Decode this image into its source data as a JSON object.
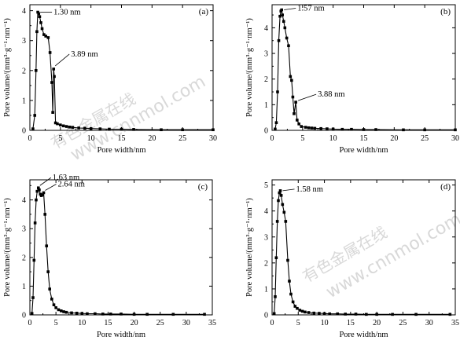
{
  "watermark": {
    "line1": "有色金属在线",
    "line2": "www.cnnmol.com"
  },
  "chart_data": [
    {
      "type": "line",
      "panel_label": "(a)",
      "xlabel": "Pore width/nm",
      "ylabel": "Pore volume/(mm³·g⁻¹·nm⁻¹)",
      "xlim": [
        0,
        30
      ],
      "ylim": [
        0,
        4.2
      ],
      "xticks": [
        0,
        5,
        10,
        15,
        20,
        25,
        30
      ],
      "yticks": [
        0,
        1,
        2,
        3,
        4
      ],
      "x": [
        0.5,
        0.8,
        1.0,
        1.15,
        1.3,
        1.45,
        1.6,
        1.8,
        2.0,
        2.3,
        2.6,
        3.0,
        3.3,
        3.6,
        3.75,
        3.89,
        4.0,
        4.2,
        4.5,
        5.0,
        5.5,
        6.0,
        6.5,
        7.0,
        8.0,
        9.0,
        10.0,
        11.5,
        13.0,
        15.0,
        17.0,
        21.5,
        25.0,
        30.0
      ],
      "y": [
        0.05,
        0.5,
        2.0,
        3.3,
        3.95,
        3.9,
        3.8,
        3.6,
        3.4,
        3.2,
        3.15,
        3.1,
        2.6,
        1.6,
        0.6,
        2.05,
        1.8,
        0.25,
        0.22,
        0.18,
        0.15,
        0.13,
        0.11,
        0.1,
        0.08,
        0.07,
        0.06,
        0.05,
        0.04,
        0.04,
        0.03,
        0.02,
        0.02,
        0.02
      ],
      "annotations": [
        {
          "text": "1.30 nm",
          "x": 1.3,
          "y": 3.95
        },
        {
          "text": "3.89 nm",
          "x": 3.89,
          "y": 2.05
        }
      ]
    },
    {
      "type": "line",
      "panel_label": "(b)",
      "xlabel": "Pore width/nm",
      "ylabel": "Pore volume/(mm³·g⁻¹·nm⁻¹)",
      "xlim": [
        0,
        30
      ],
      "ylim": [
        0,
        4.9
      ],
      "xticks": [
        0,
        5,
        10,
        15,
        20,
        25,
        30
      ],
      "yticks": [
        0,
        1,
        2,
        3,
        4
      ],
      "x": [
        0.5,
        0.7,
        0.9,
        1.1,
        1.3,
        1.45,
        1.57,
        1.7,
        1.9,
        2.1,
        2.4,
        2.7,
        3.0,
        3.2,
        3.4,
        3.6,
        3.88,
        4.1,
        4.4,
        4.8,
        5.5,
        6.0,
        6.5,
        7.0,
        8.0,
        9.0,
        10.0,
        11.5,
        13.0,
        15.0,
        17.0,
        21.5,
        25.0,
        30.0
      ],
      "y": [
        0.05,
        0.3,
        1.5,
        3.5,
        4.45,
        4.65,
        4.7,
        4.5,
        4.25,
        4.0,
        3.6,
        3.3,
        2.1,
        1.95,
        1.3,
        0.65,
        1.1,
        0.4,
        0.25,
        0.15,
        0.12,
        0.1,
        0.09,
        0.08,
        0.07,
        0.06,
        0.05,
        0.04,
        0.04,
        0.03,
        0.03,
        0.02,
        0.02,
        0.02
      ],
      "annotations": [
        {
          "text": "1.57 nm",
          "x": 1.57,
          "y": 4.7
        },
        {
          "text": "3.88 nm",
          "x": 3.88,
          "y": 1.1
        }
      ]
    },
    {
      "type": "line",
      "panel_label": "(c)",
      "xlabel": "Pore width/nm",
      "ylabel": "Pore volume/(mm³·g⁻¹·nm⁻¹)",
      "xlim": [
        0,
        35
      ],
      "ylim": [
        0,
        4.7
      ],
      "xticks": [
        0,
        5,
        10,
        15,
        20,
        25,
        30,
        35
      ],
      "yticks": [
        0,
        1,
        2,
        3,
        4
      ],
      "x": [
        0.4,
        0.6,
        0.8,
        1.0,
        1.2,
        1.4,
        1.63,
        1.8,
        2.0,
        2.2,
        2.4,
        2.64,
        2.9,
        3.2,
        3.5,
        3.8,
        4.2,
        4.6,
        5.0,
        5.5,
        6.0,
        6.5,
        7.0,
        8.0,
        9.0,
        10.0,
        11.0,
        12.5,
        14.0,
        15.5,
        17.5,
        20.0,
        22.5,
        27.5,
        33.5
      ],
      "y": [
        0.05,
        0.6,
        1.9,
        3.2,
        4.0,
        4.3,
        4.42,
        4.35,
        4.2,
        4.15,
        4.18,
        4.25,
        3.5,
        2.4,
        1.5,
        0.9,
        0.55,
        0.35,
        0.25,
        0.18,
        0.14,
        0.11,
        0.09,
        0.07,
        0.06,
        0.05,
        0.04,
        0.04,
        0.03,
        0.03,
        0.03,
        0.02,
        0.02,
        0.02,
        0.02
      ],
      "annotations": [
        {
          "text": "1.63 nm",
          "x": 1.63,
          "y": 4.42
        },
        {
          "text": "2.64 nm",
          "x": 2.64,
          "y": 4.25
        }
      ]
    },
    {
      "type": "line",
      "panel_label": "(d)",
      "xlabel": "Pore width/nm",
      "ylabel": "Pore volume/(mm³·g⁻¹·nm⁻¹)",
      "xlim": [
        0,
        35
      ],
      "ylim": [
        0,
        5.2
      ],
      "xticks": [
        0,
        5,
        10,
        15,
        20,
        25,
        30,
        35
      ],
      "yticks": [
        0,
        1,
        2,
        3,
        4,
        5
      ],
      "x": [
        0.4,
        0.6,
        0.8,
        1.0,
        1.2,
        1.4,
        1.58,
        1.75,
        2.0,
        2.3,
        2.6,
        3.0,
        3.3,
        3.6,
        4.0,
        4.4,
        4.8,
        5.3,
        5.8,
        6.3,
        7.0,
        8.0,
        9.0,
        10.0,
        11.0,
        12.5,
        14.0,
        16.0,
        18.0,
        20.0,
        23.0,
        27.5,
        34.0
      ],
      "y": [
        0.05,
        0.7,
        2.2,
        3.6,
        4.4,
        4.7,
        4.78,
        4.6,
        4.25,
        3.95,
        3.6,
        2.1,
        1.3,
        0.8,
        0.5,
        0.33,
        0.25,
        0.18,
        0.14,
        0.11,
        0.09,
        0.07,
        0.06,
        0.05,
        0.04,
        0.04,
        0.03,
        0.03,
        0.02,
        0.02,
        0.02,
        0.02,
        0.02
      ],
      "annotations": [
        {
          "text": "1.58 nm",
          "x": 1.58,
          "y": 4.78
        }
      ]
    }
  ]
}
